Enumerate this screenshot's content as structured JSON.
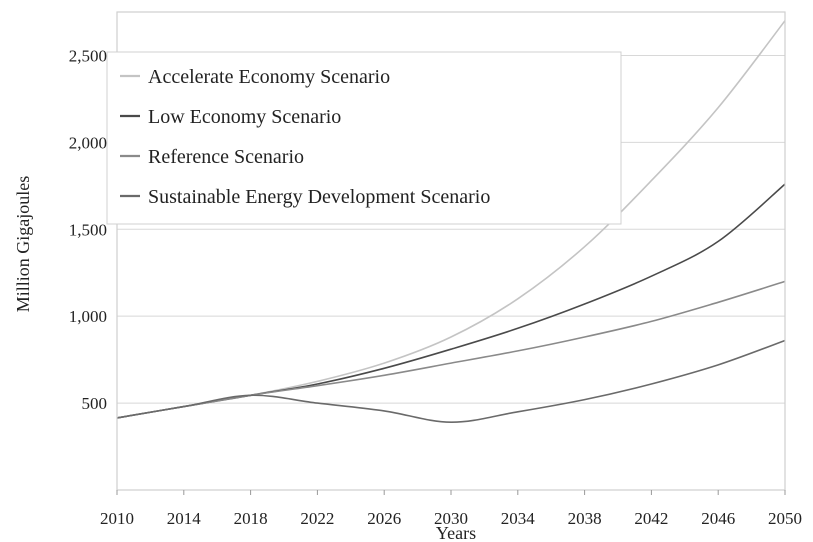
{
  "chart_data": {
    "type": "line",
    "title": "",
    "xlabel": "Years",
    "ylabel": "Million Gigajoules",
    "xlim": [
      2010,
      2050
    ],
    "ylim": [
      0,
      2750
    ],
    "x_ticks": [
      "2010",
      "2014",
      "2018",
      "2022",
      "2026",
      "2030",
      "2034",
      "2038",
      "2042",
      "2046",
      "2050"
    ],
    "y_ticks": [
      "500",
      "1,000",
      "1,500",
      "2,000",
      "2,500"
    ],
    "y_tick_values": [
      500,
      1000,
      1500,
      2000,
      2500
    ],
    "grid": "horizontal",
    "legend_position": "top-left",
    "x": [
      2010,
      2014,
      2018,
      2022,
      2026,
      2030,
      2034,
      2038,
      2042,
      2046,
      2050
    ],
    "series": [
      {
        "name": "Accelerate Economy Scenario",
        "color": "#c4c4c4",
        "values": [
          415,
          480,
          545,
          625,
          730,
          880,
          1100,
          1400,
          1780,
          2200,
          2700
        ]
      },
      {
        "name": "Low Economy Scenario",
        "color": "#4a4a4a",
        "values": [
          415,
          480,
          545,
          610,
          700,
          810,
          930,
          1070,
          1230,
          1430,
          1760
        ]
      },
      {
        "name": "Reference Scenario",
        "color": "#8a8a8a",
        "values": [
          415,
          480,
          545,
          600,
          660,
          730,
          800,
          880,
          970,
          1080,
          1200
        ]
      },
      {
        "name": "Sustainable Energy Development Scenario",
        "color": "#6a6a6a",
        "values": [
          415,
          480,
          545,
          500,
          455,
          390,
          450,
          520,
          610,
          720,
          860
        ]
      }
    ]
  }
}
